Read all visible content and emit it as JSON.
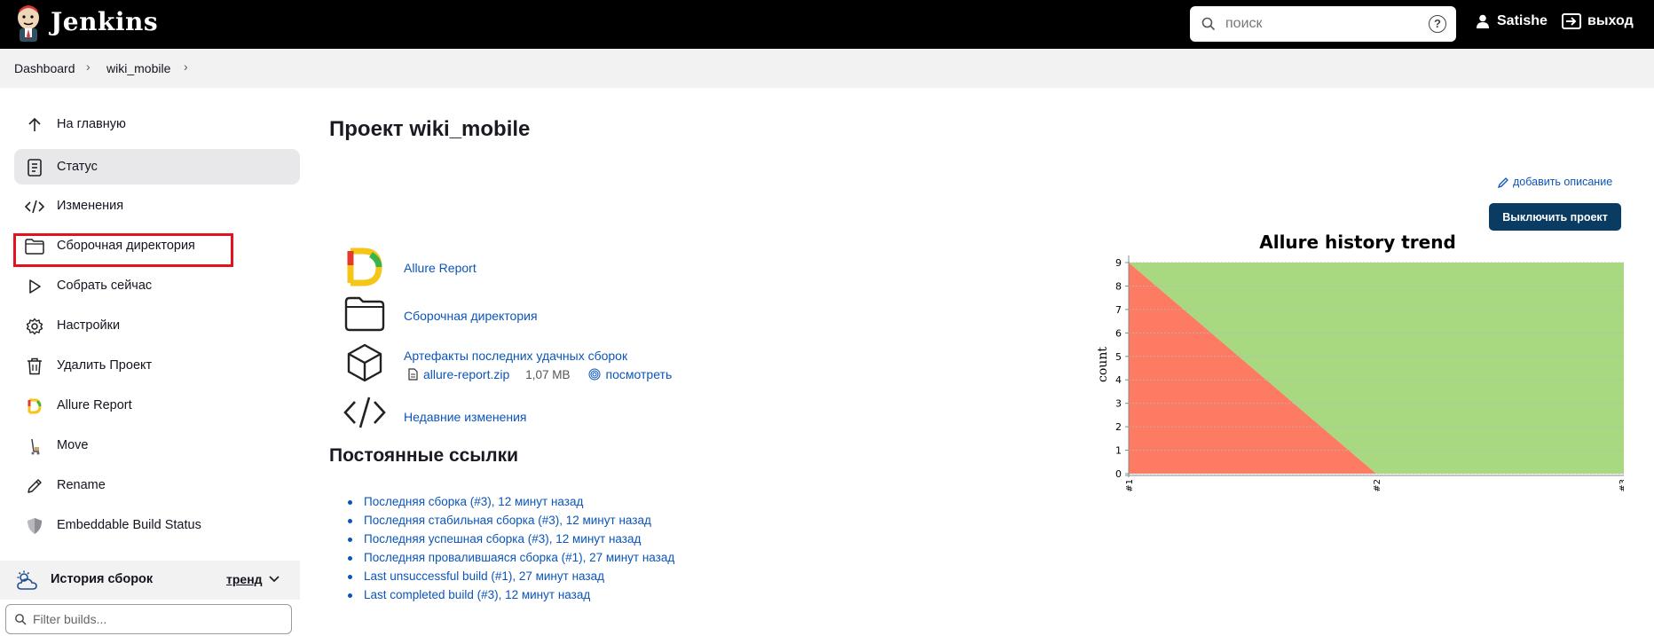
{
  "header": {
    "brand": "Jenkins",
    "search_placeholder": "поиск",
    "help_label": "?",
    "user": "Satishe",
    "logout": "выход"
  },
  "breadcrumb": {
    "items": [
      "Dashboard",
      "wiki_mobile"
    ]
  },
  "sidebar": {
    "items": [
      {
        "label": "На главную",
        "icon": "arrow-up-icon"
      },
      {
        "label": "Статус",
        "icon": "status-doc-icon"
      },
      {
        "label": "Изменения",
        "icon": "code-icon"
      },
      {
        "label": "Сборочная директория",
        "icon": "folder-icon"
      },
      {
        "label": "Собрать сейчас",
        "icon": "play-icon"
      },
      {
        "label": "Настройки",
        "icon": "gear-icon"
      },
      {
        "label": "Удалить Проект",
        "icon": "trash-icon"
      },
      {
        "label": "Allure Report",
        "icon": "allure-icon"
      },
      {
        "label": "Move",
        "icon": "move-icon"
      },
      {
        "label": "Rename",
        "icon": "pencil-icon"
      },
      {
        "label": "Embeddable Build Status",
        "icon": "shield-icon"
      }
    ],
    "history_label": "История сборок",
    "history_trend": "тренд",
    "filter_placeholder": "Filter builds..."
  },
  "main": {
    "title": "Проект wiki_mobile",
    "add_description": "добавить описание",
    "disable_button": "Выключить проект",
    "actions": {
      "allure": "Allure Report",
      "workspace": "Сборочная директория",
      "artifacts": "Артефакты последних удачных сборок",
      "artifact_file": "allure-report.zip",
      "artifact_size": "1,07 MB",
      "artifact_view": "посмотреть",
      "changes": "Недавние изменения"
    },
    "permalinks_title": "Постоянные ссылки",
    "permalinks": [
      "Последняя сборка (#3), 12 минут назад",
      "Последняя стабильная сборка (#3), 12 минут назад",
      "Последняя успешная сборка (#3), 12 минут назад",
      "Последняя провалившаяся сборка (#1), 27 минут назад",
      "Last unsuccessful build (#1), 27 минут назад",
      "Last completed build (#3), 12 минут назад"
    ]
  },
  "colors": {
    "header_bg": "#000000",
    "link": "#0b55b9",
    "button_bg": "#0a3b62",
    "highlight": "#e3121e",
    "failed": "#fd7b63",
    "passed": "#a8d880"
  },
  "chart_data": {
    "type": "area",
    "title": "Allure history trend",
    "ylabel": "count",
    "xlabel": "",
    "categories": [
      "#1",
      "#2",
      "#3"
    ],
    "ylim": [
      0,
      9
    ],
    "yticks": [
      0,
      1,
      2,
      3,
      4,
      5,
      6,
      7,
      8,
      9
    ],
    "series": [
      {
        "key": "failed",
        "values": [
          9,
          0,
          0
        ]
      },
      {
        "key": "passed",
        "values": [
          0,
          9,
          9
        ]
      }
    ],
    "stacked": true,
    "grid": true
  }
}
